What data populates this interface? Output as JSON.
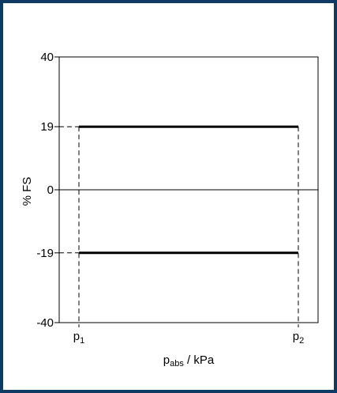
{
  "colors": {
    "frame": "#0e3a63",
    "line": "#000000"
  },
  "chart_data": {
    "type": "line",
    "ylabel": "% FS",
    "xlabel": {
      "main": "p",
      "sub": "abs",
      "rest": " / kPa"
    },
    "ylim": [
      -40,
      40
    ],
    "yticks": [
      40,
      19,
      0,
      -19,
      -40
    ],
    "xticks": [
      {
        "main": "p",
        "sub": "1"
      },
      {
        "main": "p",
        "sub": "2"
      }
    ],
    "series": [
      {
        "x": [
          "p1",
          "p2"
        ],
        "values": [
          19,
          19
        ]
      },
      {
        "x": [
          "p1",
          "p2"
        ],
        "values": [
          -19,
          -19
        ]
      }
    ],
    "grid": false
  }
}
